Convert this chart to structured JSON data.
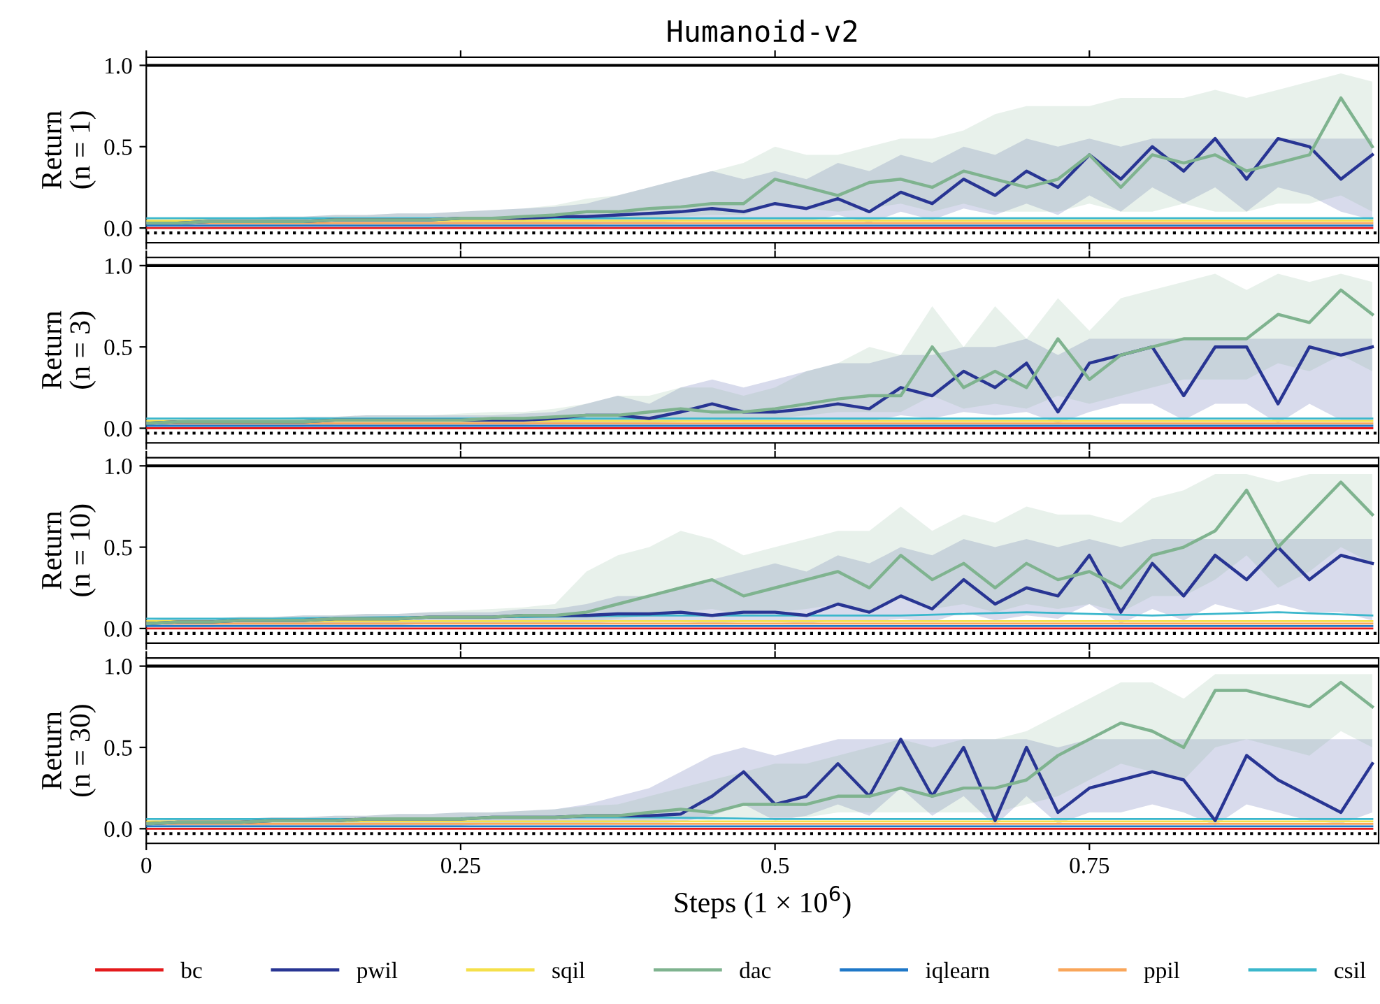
{
  "chart_data": [
    {
      "type": "line",
      "title": "Humanoid-v2",
      "ylabel": "Return\n(n = 1)",
      "tick_labels": "y",
      "legend": "bottom",
      "xlim": [
        0,
        0.98
      ],
      "ylim": [
        -0.09,
        1.05
      ],
      "xticks": [
        0,
        0.25,
        0.5,
        0.75
      ],
      "yticks": [
        {
          "value": 0,
          "label": "0.0"
        },
        {
          "value": 0.5,
          "label": "0.5"
        },
        {
          "value": 1,
          "label": "1.0"
        }
      ],
      "ref_lines": [
        {
          "axis": "y",
          "value": 1.0,
          "color": "#000000",
          "line_style": "solid"
        },
        {
          "axis": "y",
          "value": -0.03,
          "color": "#000000",
          "line_style": "dotted"
        }
      ],
      "x": [
        0,
        0.025,
        0.05,
        0.075,
        0.1,
        0.125,
        0.15,
        0.175,
        0.2,
        0.225,
        0.25,
        0.275,
        0.3,
        0.325,
        0.35,
        0.375,
        0.4,
        0.425,
        0.45,
        0.475,
        0.5,
        0.525,
        0.55,
        0.575,
        0.6,
        0.625,
        0.65,
        0.675,
        0.7,
        0.725,
        0.75,
        0.775,
        0.8,
        0.825,
        0.85,
        0.875,
        0.9,
        0.925,
        0.95,
        0.975
      ],
      "series": [
        {
          "name": "bc",
          "color": "#e41a1c",
          "x": [
            0,
            0.1,
            0.2,
            0.3,
            0.4,
            0.5,
            0.6,
            0.7,
            0.8,
            0.9,
            0.975
          ],
          "values": [
            0,
            0,
            0,
            0,
            0,
            0,
            0,
            0,
            0,
            0,
            0
          ]
        },
        {
          "name": "pwil",
          "color": "#283593",
          "values": [
            0.03,
            0.03,
            0.04,
            0.04,
            0.04,
            0.04,
            0.05,
            0.05,
            0.05,
            0.05,
            0.06,
            0.06,
            0.06,
            0.07,
            0.07,
            0.08,
            0.09,
            0.1,
            0.12,
            0.1,
            0.15,
            0.12,
            0.18,
            0.1,
            0.22,
            0.15,
            0.3,
            0.2,
            0.35,
            0.25,
            0.45,
            0.3,
            0.5,
            0.35,
            0.55,
            0.3,
            0.55,
            0.5,
            0.3,
            0.45
          ],
          "lower": [
            0.01,
            0.01,
            0.01,
            0.01,
            0.01,
            0.01,
            0.01,
            0.01,
            0.01,
            0.01,
            0.02,
            0.02,
            0.02,
            0.02,
            0.02,
            0.03,
            0.03,
            0.04,
            0.05,
            0.04,
            0.05,
            0.04,
            0.08,
            0.03,
            0.1,
            0.05,
            0.12,
            0.08,
            0.15,
            0.08,
            0.2,
            0.1,
            0.25,
            0.15,
            0.25,
            0.1,
            0.25,
            0.2,
            0.1,
            0.05
          ],
          "upper": [
            0.05,
            0.05,
            0.06,
            0.06,
            0.07,
            0.07,
            0.08,
            0.08,
            0.09,
            0.09,
            0.1,
            0.11,
            0.12,
            0.13,
            0.15,
            0.2,
            0.25,
            0.3,
            0.35,
            0.3,
            0.35,
            0.3,
            0.4,
            0.35,
            0.45,
            0.4,
            0.5,
            0.45,
            0.55,
            0.5,
            0.55,
            0.5,
            0.55,
            0.55,
            0.55,
            0.55,
            0.55,
            0.55,
            0.55,
            0.55
          ]
        },
        {
          "name": "sqil",
          "color": "#f5e04a",
          "x": [
            0,
            0.1,
            0.2,
            0.3,
            0.4,
            0.5,
            0.6,
            0.7,
            0.8,
            0.9,
            0.975
          ],
          "values": [
            0.045,
            0.045,
            0.045,
            0.045,
            0.045,
            0.045,
            0.045,
            0.045,
            0.045,
            0.045,
            0.045
          ]
        },
        {
          "name": "dac",
          "color": "#7fb38f",
          "values": [
            0.03,
            0.03,
            0.04,
            0.04,
            0.04,
            0.04,
            0.05,
            0.05,
            0.05,
            0.05,
            0.06,
            0.06,
            0.07,
            0.08,
            0.1,
            0.1,
            0.12,
            0.13,
            0.15,
            0.15,
            0.3,
            0.25,
            0.2,
            0.28,
            0.3,
            0.25,
            0.35,
            0.3,
            0.25,
            0.3,
            0.45,
            0.25,
            0.45,
            0.4,
            0.45,
            0.35,
            0.4,
            0.45,
            0.8,
            0.5
          ],
          "lower": [
            0.01,
            0.01,
            0.01,
            0.01,
            0.01,
            0.01,
            0.02,
            0.02,
            0.02,
            0.02,
            0.02,
            0.03,
            0.03,
            0.04,
            0.05,
            0.05,
            0.06,
            0.07,
            0.08,
            0.08,
            0.15,
            0.12,
            0.1,
            0.12,
            0.15,
            0.1,
            0.15,
            0.1,
            0.1,
            0.1,
            0.15,
            0.1,
            0.1,
            0.15,
            0.1,
            0.1,
            0.15,
            0.15,
            0.2,
            0.1
          ],
          "upper": [
            0.05,
            0.05,
            0.06,
            0.06,
            0.07,
            0.07,
            0.08,
            0.08,
            0.09,
            0.09,
            0.1,
            0.11,
            0.12,
            0.14,
            0.18,
            0.2,
            0.25,
            0.3,
            0.35,
            0.4,
            0.5,
            0.45,
            0.45,
            0.5,
            0.55,
            0.55,
            0.6,
            0.7,
            0.75,
            0.75,
            0.75,
            0.8,
            0.8,
            0.8,
            0.85,
            0.8,
            0.85,
            0.9,
            0.95,
            0.9
          ]
        },
        {
          "name": "iqlearn",
          "color": "#1f78c8",
          "x": [
            0,
            0.1,
            0.2,
            0.3,
            0.4,
            0.5,
            0.6,
            0.7,
            0.8,
            0.9,
            0.975
          ],
          "values": [
            0.015,
            0.015,
            0.015,
            0.015,
            0.015,
            0.015,
            0.015,
            0.015,
            0.015,
            0.015,
            0.015
          ]
        },
        {
          "name": "ppil",
          "color": "#f9a65a",
          "x": [
            0,
            0.1,
            0.2,
            0.3,
            0.4,
            0.5,
            0.6,
            0.7,
            0.8,
            0.9,
            0.975
          ],
          "values": [
            0.03,
            0.03,
            0.03,
            0.03,
            0.03,
            0.03,
            0.03,
            0.03,
            0.03,
            0.03,
            0.03
          ]
        },
        {
          "name": "csil",
          "color": "#3bb7cc",
          "x": [
            0,
            0.1,
            0.2,
            0.3,
            0.4,
            0.5,
            0.6,
            0.7,
            0.8,
            0.9,
            0.975
          ],
          "values": [
            0.06,
            0.06,
            0.06,
            0.06,
            0.06,
            0.06,
            0.06,
            0.06,
            0.06,
            0.06,
            0.06
          ]
        }
      ]
    },
    {
      "type": "line",
      "ylabel": "Return\n(n = 3)",
      "tick_labels": "y",
      "xlim": [
        0,
        0.98
      ],
      "ylim": [
        -0.09,
        1.05
      ],
      "xticks": [
        0,
        0.25,
        0.5,
        0.75
      ],
      "yticks": [
        {
          "value": 0,
          "label": "0.0"
        },
        {
          "value": 0.5,
          "label": "0.5"
        },
        {
          "value": 1,
          "label": "1.0"
        }
      ],
      "ref_lines": [
        {
          "axis": "y",
          "value": 1.0,
          "color": "#000000",
          "line_style": "solid"
        },
        {
          "axis": "y",
          "value": -0.03,
          "color": "#000000",
          "line_style": "dotted"
        }
      ],
      "x": [
        0,
        0.025,
        0.05,
        0.075,
        0.1,
        0.125,
        0.15,
        0.175,
        0.2,
        0.225,
        0.25,
        0.275,
        0.3,
        0.325,
        0.35,
        0.375,
        0.4,
        0.425,
        0.45,
        0.475,
        0.5,
        0.525,
        0.55,
        0.575,
        0.6,
        0.625,
        0.65,
        0.675,
        0.7,
        0.725,
        0.75,
        0.775,
        0.8,
        0.825,
        0.85,
        0.875,
        0.9,
        0.925,
        0.95,
        0.975
      ],
      "series": [
        {
          "color": "#e41a1c",
          "x": [
            0,
            0.1,
            0.2,
            0.3,
            0.4,
            0.5,
            0.6,
            0.7,
            0.8,
            0.9,
            0.975
          ],
          "values": [
            0,
            0,
            0,
            0,
            0,
            0,
            0,
            0,
            0,
            0,
            0
          ]
        },
        {
          "color": "#283593",
          "values": [
            0.03,
            0.04,
            0.04,
            0.04,
            0.04,
            0.04,
            0.05,
            0.05,
            0.05,
            0.05,
            0.05,
            0.05,
            0.05,
            0.06,
            0.08,
            0.08,
            0.06,
            0.1,
            0.15,
            0.1,
            0.1,
            0.12,
            0.15,
            0.12,
            0.25,
            0.2,
            0.35,
            0.25,
            0.4,
            0.1,
            0.4,
            0.45,
            0.5,
            0.2,
            0.5,
            0.5,
            0.15,
            0.5,
            0.45,
            0.5
          ],
          "lower": [
            0.01,
            0.01,
            0.01,
            0.01,
            0.01,
            0.01,
            0.02,
            0.02,
            0.02,
            0.02,
            0.02,
            0.02,
            0.02,
            0.03,
            0.03,
            0.03,
            0.03,
            0.04,
            0.05,
            0.04,
            0.04,
            0.05,
            0.05,
            0.04,
            0.08,
            0.06,
            0.1,
            0.08,
            0.1,
            0.03,
            0.1,
            0.15,
            0.15,
            0.05,
            0.15,
            0.15,
            0.03,
            0.15,
            0.05,
            0.05
          ],
          "upper": [
            0.05,
            0.05,
            0.06,
            0.06,
            0.06,
            0.07,
            0.07,
            0.08,
            0.08,
            0.08,
            0.08,
            0.08,
            0.09,
            0.1,
            0.15,
            0.2,
            0.15,
            0.25,
            0.3,
            0.25,
            0.3,
            0.35,
            0.4,
            0.4,
            0.45,
            0.45,
            0.5,
            0.5,
            0.55,
            0.45,
            0.55,
            0.55,
            0.55,
            0.55,
            0.55,
            0.55,
            0.55,
            0.55,
            0.55,
            0.55
          ]
        },
        {
          "color": "#f5e04a",
          "x": [
            0,
            0.1,
            0.2,
            0.3,
            0.4,
            0.5,
            0.6,
            0.7,
            0.8,
            0.9,
            0.975
          ],
          "values": [
            0.045,
            0.045,
            0.045,
            0.045,
            0.045,
            0.045,
            0.045,
            0.045,
            0.045,
            0.045,
            0.045
          ]
        },
        {
          "color": "#7fb38f",
          "values": [
            0.03,
            0.04,
            0.04,
            0.04,
            0.04,
            0.04,
            0.05,
            0.05,
            0.05,
            0.05,
            0.05,
            0.06,
            0.06,
            0.07,
            0.08,
            0.08,
            0.1,
            0.12,
            0.1,
            0.1,
            0.12,
            0.15,
            0.18,
            0.2,
            0.2,
            0.5,
            0.25,
            0.35,
            0.25,
            0.55,
            0.3,
            0.45,
            0.5,
            0.55,
            0.55,
            0.55,
            0.7,
            0.65,
            0.85,
            0.7
          ],
          "lower": [
            0.01,
            0.01,
            0.01,
            0.01,
            0.01,
            0.01,
            0.02,
            0.02,
            0.02,
            0.02,
            0.02,
            0.03,
            0.03,
            0.03,
            0.04,
            0.04,
            0.05,
            0.06,
            0.05,
            0.05,
            0.06,
            0.08,
            0.1,
            0.1,
            0.1,
            0.2,
            0.12,
            0.15,
            0.12,
            0.2,
            0.15,
            0.2,
            0.25,
            0.3,
            0.3,
            0.3,
            0.4,
            0.35,
            0.45,
            0.35
          ],
          "upper": [
            0.05,
            0.05,
            0.06,
            0.06,
            0.06,
            0.07,
            0.07,
            0.08,
            0.08,
            0.08,
            0.09,
            0.1,
            0.1,
            0.12,
            0.15,
            0.2,
            0.2,
            0.25,
            0.25,
            0.2,
            0.25,
            0.35,
            0.4,
            0.5,
            0.45,
            0.75,
            0.5,
            0.75,
            0.55,
            0.8,
            0.6,
            0.8,
            0.85,
            0.9,
            0.95,
            0.85,
            0.95,
            0.9,
            0.95,
            0.9
          ]
        },
        {
          "color": "#1f78c8",
          "x": [
            0,
            0.1,
            0.2,
            0.3,
            0.4,
            0.5,
            0.6,
            0.7,
            0.8,
            0.9,
            0.975
          ],
          "values": [
            0.015,
            0.015,
            0.015,
            0.015,
            0.015,
            0.015,
            0.015,
            0.015,
            0.015,
            0.015,
            0.015
          ]
        },
        {
          "color": "#f9a65a",
          "x": [
            0,
            0.1,
            0.2,
            0.3,
            0.4,
            0.5,
            0.6,
            0.7,
            0.8,
            0.9,
            0.975
          ],
          "values": [
            0.03,
            0.03,
            0.03,
            0.03,
            0.03,
            0.03,
            0.03,
            0.03,
            0.03,
            0.03,
            0.03
          ]
        },
        {
          "color": "#3bb7cc",
          "x": [
            0,
            0.1,
            0.2,
            0.3,
            0.4,
            0.5,
            0.6,
            0.7,
            0.8,
            0.9,
            0.975
          ],
          "values": [
            0.06,
            0.06,
            0.06,
            0.06,
            0.06,
            0.06,
            0.06,
            0.06,
            0.06,
            0.06,
            0.06
          ]
        }
      ]
    },
    {
      "type": "line",
      "ylabel": "Return\n(n = 10)",
      "tick_labels": "y",
      "xlim": [
        0,
        0.98
      ],
      "ylim": [
        -0.09,
        1.05
      ],
      "xticks": [
        0,
        0.25,
        0.5,
        0.75
      ],
      "yticks": [
        {
          "value": 0,
          "label": "0.0"
        },
        {
          "value": 0.5,
          "label": "0.5"
        },
        {
          "value": 1,
          "label": "1.0"
        }
      ],
      "ref_lines": [
        {
          "axis": "y",
          "value": 1.0,
          "color": "#000000",
          "line_style": "solid"
        },
        {
          "axis": "y",
          "value": -0.03,
          "color": "#000000",
          "line_style": "dotted"
        }
      ],
      "x": [
        0,
        0.025,
        0.05,
        0.075,
        0.1,
        0.125,
        0.15,
        0.175,
        0.2,
        0.225,
        0.25,
        0.275,
        0.3,
        0.325,
        0.35,
        0.375,
        0.4,
        0.425,
        0.45,
        0.475,
        0.5,
        0.525,
        0.55,
        0.575,
        0.6,
        0.625,
        0.65,
        0.675,
        0.7,
        0.725,
        0.75,
        0.775,
        0.8,
        0.825,
        0.85,
        0.875,
        0.9,
        0.925,
        0.95,
        0.975
      ],
      "series": [
        {
          "color": "#e41a1c",
          "x": [
            0,
            0.1,
            0.2,
            0.3,
            0.4,
            0.5,
            0.6,
            0.7,
            0.8,
            0.9,
            0.975
          ],
          "values": [
            0,
            0,
            0,
            0,
            0,
            0,
            0,
            0,
            0,
            0,
            0
          ]
        },
        {
          "color": "#283593",
          "values": [
            0.03,
            0.04,
            0.04,
            0.05,
            0.05,
            0.05,
            0.06,
            0.06,
            0.06,
            0.07,
            0.07,
            0.07,
            0.08,
            0.08,
            0.08,
            0.09,
            0.09,
            0.1,
            0.08,
            0.1,
            0.1,
            0.08,
            0.15,
            0.1,
            0.2,
            0.12,
            0.3,
            0.15,
            0.25,
            0.2,
            0.45,
            0.1,
            0.4,
            0.2,
            0.45,
            0.3,
            0.5,
            0.3,
            0.45,
            0.4
          ],
          "lower": [
            0.01,
            0.01,
            0.01,
            0.02,
            0.02,
            0.02,
            0.02,
            0.02,
            0.02,
            0.03,
            0.03,
            0.03,
            0.03,
            0.03,
            0.03,
            0.04,
            0.04,
            0.04,
            0.03,
            0.04,
            0.04,
            0.03,
            0.05,
            0.04,
            0.06,
            0.04,
            0.1,
            0.05,
            0.08,
            0.06,
            0.15,
            0.03,
            0.12,
            0.05,
            0.15,
            0.1,
            0.15,
            0.1,
            0.1,
            0.05
          ],
          "upper": [
            0.05,
            0.06,
            0.06,
            0.07,
            0.07,
            0.08,
            0.08,
            0.09,
            0.09,
            0.1,
            0.1,
            0.1,
            0.12,
            0.12,
            0.15,
            0.2,
            0.2,
            0.25,
            0.3,
            0.35,
            0.4,
            0.35,
            0.45,
            0.4,
            0.5,
            0.45,
            0.55,
            0.5,
            0.55,
            0.5,
            0.55,
            0.5,
            0.55,
            0.55,
            0.55,
            0.55,
            0.55,
            0.55,
            0.55,
            0.55
          ]
        },
        {
          "color": "#f5e04a",
          "x": [
            0,
            0.1,
            0.2,
            0.3,
            0.4,
            0.5,
            0.6,
            0.7,
            0.8,
            0.9,
            0.975
          ],
          "values": [
            0.045,
            0.045,
            0.045,
            0.045,
            0.045,
            0.045,
            0.045,
            0.045,
            0.045,
            0.045,
            0.045
          ]
        },
        {
          "color": "#7fb38f",
          "values": [
            0.03,
            0.04,
            0.04,
            0.05,
            0.05,
            0.05,
            0.06,
            0.06,
            0.06,
            0.07,
            0.07,
            0.07,
            0.08,
            0.08,
            0.1,
            0.15,
            0.2,
            0.25,
            0.3,
            0.2,
            0.25,
            0.3,
            0.35,
            0.25,
            0.45,
            0.3,
            0.4,
            0.25,
            0.4,
            0.3,
            0.35,
            0.25,
            0.45,
            0.5,
            0.6,
            0.85,
            0.5,
            0.7,
            0.9,
            0.7
          ],
          "lower": [
            0.01,
            0.01,
            0.01,
            0.02,
            0.02,
            0.02,
            0.02,
            0.02,
            0.02,
            0.03,
            0.03,
            0.03,
            0.03,
            0.03,
            0.04,
            0.06,
            0.08,
            0.1,
            0.12,
            0.08,
            0.1,
            0.12,
            0.15,
            0.1,
            0.2,
            0.12,
            0.15,
            0.1,
            0.15,
            0.12,
            0.15,
            0.1,
            0.2,
            0.2,
            0.3,
            0.45,
            0.25,
            0.35,
            0.5,
            0.4
          ],
          "upper": [
            0.05,
            0.06,
            0.06,
            0.07,
            0.07,
            0.08,
            0.08,
            0.09,
            0.09,
            0.1,
            0.11,
            0.12,
            0.13,
            0.15,
            0.35,
            0.45,
            0.5,
            0.6,
            0.55,
            0.45,
            0.5,
            0.55,
            0.6,
            0.6,
            0.75,
            0.6,
            0.7,
            0.65,
            0.75,
            0.7,
            0.7,
            0.65,
            0.8,
            0.85,
            0.95,
            0.95,
            0.9,
            0.95,
            0.95,
            0.95
          ]
        },
        {
          "color": "#1f78c8",
          "x": [
            0,
            0.1,
            0.2,
            0.3,
            0.4,
            0.5,
            0.6,
            0.7,
            0.8,
            0.9,
            0.975
          ],
          "values": [
            0.015,
            0.015,
            0.015,
            0.015,
            0.015,
            0.015,
            0.015,
            0.015,
            0.015,
            0.015,
            0.015
          ]
        },
        {
          "color": "#f9a65a",
          "x": [
            0,
            0.1,
            0.2,
            0.3,
            0.4,
            0.5,
            0.6,
            0.7,
            0.8,
            0.9,
            0.975
          ],
          "values": [
            0.03,
            0.03,
            0.03,
            0.03,
            0.03,
            0.03,
            0.03,
            0.03,
            0.03,
            0.03,
            0.03
          ]
        },
        {
          "color": "#3bb7cc",
          "x": [
            0,
            0.1,
            0.2,
            0.3,
            0.4,
            0.5,
            0.6,
            0.7,
            0.8,
            0.9,
            0.975
          ],
          "values": [
            0.06,
            0.06,
            0.07,
            0.07,
            0.08,
            0.08,
            0.08,
            0.1,
            0.08,
            0.1,
            0.08
          ]
        }
      ]
    },
    {
      "type": "line",
      "ylabel": "Return\n(n = 30)",
      "xlabel": "Steps (1 × 10$^{6}$)",
      "xlim": [
        0,
        0.98
      ],
      "ylim": [
        -0.09,
        1.05
      ],
      "xticks": [
        0,
        0.25,
        0.5,
        0.75
      ],
      "yticks": [
        {
          "value": 0,
          "label": "0.0"
        },
        {
          "value": 0.5,
          "label": "0.5"
        },
        {
          "value": 1,
          "label": "1.0"
        }
      ],
      "ref_lines": [
        {
          "axis": "y",
          "value": 1.0,
          "color": "#000000",
          "line_style": "solid"
        },
        {
          "axis": "y",
          "value": -0.03,
          "color": "#000000",
          "line_style": "dotted"
        }
      ],
      "x": [
        0,
        0.025,
        0.05,
        0.075,
        0.1,
        0.125,
        0.15,
        0.175,
        0.2,
        0.225,
        0.25,
        0.275,
        0.3,
        0.325,
        0.35,
        0.375,
        0.4,
        0.425,
        0.45,
        0.475,
        0.5,
        0.525,
        0.55,
        0.575,
        0.6,
        0.625,
        0.65,
        0.675,
        0.7,
        0.725,
        0.75,
        0.775,
        0.8,
        0.825,
        0.85,
        0.875,
        0.9,
        0.925,
        0.95,
        0.975
      ],
      "series": [
        {
          "color": "#e41a1c",
          "x": [
            0,
            0.1,
            0.2,
            0.3,
            0.4,
            0.5,
            0.6,
            0.7,
            0.8,
            0.9,
            0.975
          ],
          "values": [
            0,
            0,
            0,
            0,
            0,
            0,
            0,
            0,
            0,
            0,
            0
          ]
        },
        {
          "color": "#283593",
          "values": [
            0.03,
            0.04,
            0.04,
            0.04,
            0.05,
            0.05,
            0.05,
            0.06,
            0.06,
            0.06,
            0.06,
            0.07,
            0.07,
            0.07,
            0.08,
            0.08,
            0.08,
            0.09,
            0.2,
            0.35,
            0.15,
            0.2,
            0.4,
            0.2,
            0.55,
            0.2,
            0.5,
            0.05,
            0.5,
            0.1,
            0.25,
            0.3,
            0.35,
            0.3,
            0.05,
            0.45,
            0.3,
            0.2,
            0.1,
            0.4
          ],
          "lower": [
            0.01,
            0.01,
            0.01,
            0.01,
            0.02,
            0.02,
            0.02,
            0.02,
            0.02,
            0.02,
            0.02,
            0.03,
            0.03,
            0.03,
            0.03,
            0.03,
            0.03,
            0.04,
            0.08,
            0.15,
            0.05,
            0.08,
            0.15,
            0.08,
            0.25,
            0.08,
            0.2,
            0.02,
            0.2,
            0.03,
            0.1,
            0.1,
            0.15,
            0.1,
            0.02,
            0.15,
            0.1,
            0.05,
            0.03,
            0.1
          ],
          "upper": [
            0.05,
            0.06,
            0.06,
            0.06,
            0.07,
            0.07,
            0.08,
            0.08,
            0.09,
            0.09,
            0.1,
            0.1,
            0.11,
            0.12,
            0.15,
            0.2,
            0.25,
            0.35,
            0.45,
            0.5,
            0.45,
            0.5,
            0.55,
            0.55,
            0.55,
            0.55,
            0.55,
            0.55,
            0.55,
            0.5,
            0.55,
            0.55,
            0.55,
            0.55,
            0.55,
            0.55,
            0.55,
            0.55,
            0.55,
            0.55
          ]
        },
        {
          "color": "#f5e04a",
          "x": [
            0,
            0.1,
            0.2,
            0.3,
            0.4,
            0.5,
            0.6,
            0.7,
            0.8,
            0.9,
            0.975
          ],
          "values": [
            0.045,
            0.045,
            0.045,
            0.045,
            0.045,
            0.045,
            0.045,
            0.045,
            0.045,
            0.045,
            0.045
          ]
        },
        {
          "color": "#7fb38f",
          "values": [
            0.03,
            0.04,
            0.04,
            0.04,
            0.05,
            0.05,
            0.05,
            0.06,
            0.06,
            0.06,
            0.06,
            0.07,
            0.07,
            0.07,
            0.08,
            0.08,
            0.1,
            0.12,
            0.1,
            0.15,
            0.15,
            0.15,
            0.2,
            0.2,
            0.25,
            0.2,
            0.25,
            0.25,
            0.3,
            0.45,
            0.55,
            0.65,
            0.6,
            0.5,
            0.85,
            0.85,
            0.8,
            0.75,
            0.9,
            0.75
          ],
          "lower": [
            0.01,
            0.01,
            0.01,
            0.01,
            0.02,
            0.02,
            0.02,
            0.02,
            0.02,
            0.02,
            0.02,
            0.03,
            0.03,
            0.03,
            0.03,
            0.04,
            0.05,
            0.06,
            0.05,
            0.07,
            0.07,
            0.07,
            0.1,
            0.1,
            0.1,
            0.1,
            0.1,
            0.1,
            0.15,
            0.2,
            0.3,
            0.4,
            0.35,
            0.3,
            0.5,
            0.55,
            0.5,
            0.45,
            0.6,
            0.5
          ],
          "upper": [
            0.05,
            0.06,
            0.06,
            0.06,
            0.07,
            0.07,
            0.08,
            0.08,
            0.09,
            0.09,
            0.1,
            0.1,
            0.11,
            0.12,
            0.14,
            0.15,
            0.2,
            0.25,
            0.3,
            0.35,
            0.4,
            0.4,
            0.45,
            0.5,
            0.55,
            0.5,
            0.55,
            0.55,
            0.6,
            0.7,
            0.8,
            0.9,
            0.9,
            0.8,
            0.95,
            0.95,
            0.95,
            0.95,
            0.95,
            0.95
          ]
        },
        {
          "color": "#1f78c8",
          "x": [
            0,
            0.1,
            0.2,
            0.3,
            0.4,
            0.5,
            0.6,
            0.7,
            0.8,
            0.9,
            0.975
          ],
          "values": [
            0.015,
            0.015,
            0.015,
            0.015,
            0.015,
            0.015,
            0.015,
            0.015,
            0.015,
            0.015,
            0.015
          ]
        },
        {
          "color": "#f9a65a",
          "x": [
            0,
            0.1,
            0.2,
            0.3,
            0.4,
            0.5,
            0.6,
            0.7,
            0.8,
            0.9,
            0.975
          ],
          "values": [
            0.03,
            0.03,
            0.03,
            0.03,
            0.03,
            0.03,
            0.03,
            0.03,
            0.03,
            0.03,
            0.03
          ]
        },
        {
          "color": "#3bb7cc",
          "x": [
            0,
            0.1,
            0.2,
            0.3,
            0.4,
            0.5,
            0.6,
            0.7,
            0.8,
            0.9,
            0.975
          ],
          "values": [
            0.06,
            0.06,
            0.06,
            0.07,
            0.07,
            0.06,
            0.06,
            0.06,
            0.06,
            0.06,
            0.06
          ]
        }
      ]
    }
  ]
}
